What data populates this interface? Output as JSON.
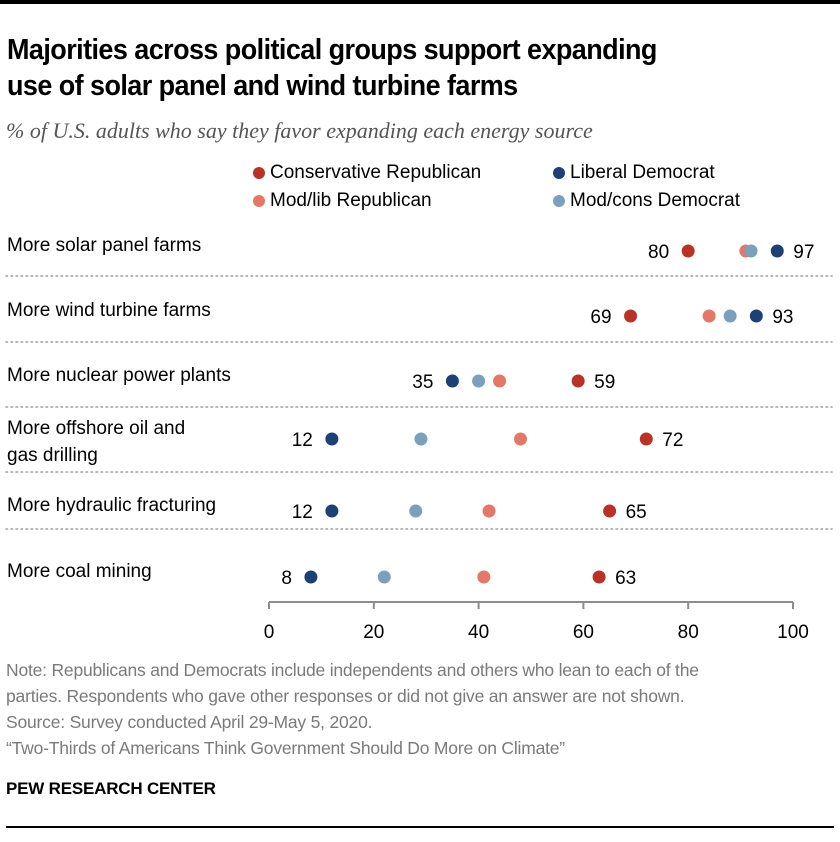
{
  "header": {
    "title_line1": "Majorities across political groups support expanding",
    "title_line2": "use of solar panel and wind turbine farms",
    "subtitle": "% of U.S. adults who say they favor expanding each energy source"
  },
  "colors": {
    "conservative_republican": "#b93226",
    "modlib_republican": "#e37768",
    "liberal_democrat": "#1d4075",
    "modcons_democrat": "#7aa0bd",
    "axis": "#8c8c8c",
    "divider": "#a0a0a0"
  },
  "chart_data": {
    "type": "scatter",
    "subtype": "dot-plot",
    "title": "Majorities across political groups support expanding use of solar panel and wind turbine farms",
    "subtitle": "% of U.S. adults who say they favor expanding each energy source",
    "xlabel": "",
    "ylabel": "",
    "xlim": [
      0,
      100
    ],
    "xticks": [
      0,
      20,
      40,
      60,
      80,
      100
    ],
    "grid": false,
    "legend_position": "top-right",
    "categories": [
      "More solar panel farms",
      "More wind turbine farms",
      "More nuclear power plants",
      "More offshore oil and gas drilling",
      "More hydraulic fracturing",
      "More coal mining"
    ],
    "series": [
      {
        "name": "Conservative Republican",
        "key": "conservative_republican",
        "values": [
          80,
          69,
          59,
          72,
          65,
          63
        ]
      },
      {
        "name": "Mod/lib Republican",
        "key": "modlib_republican",
        "values": [
          91,
          84,
          44,
          48,
          42,
          41
        ]
      },
      {
        "name": "Liberal Democrat",
        "key": "liberal_democrat",
        "values": [
          97,
          93,
          35,
          12,
          12,
          8
        ]
      },
      {
        "name": "Mod/cons Democrat",
        "key": "modcons_democrat",
        "values": [
          92,
          88,
          40,
          29,
          28,
          22
        ]
      }
    ],
    "data_labels": [
      {
        "low": "80",
        "high": "97"
      },
      {
        "low": "69",
        "high": "93"
      },
      {
        "low": "35",
        "high": "59"
      },
      {
        "low": "12",
        "high": "72"
      },
      {
        "low": "12",
        "high": "65"
      },
      {
        "low": "8",
        "high": "63"
      }
    ]
  },
  "row_labels": [
    [
      "More solar panel farms"
    ],
    [
      "More wind turbine farms"
    ],
    [
      "More nuclear power plants"
    ],
    [
      "More offshore oil and",
      "gas drilling"
    ],
    [
      "More hydraulic fracturing"
    ],
    [
      "More coal mining"
    ]
  ],
  "legend": {
    "items": [
      {
        "label": "Conservative Republican",
        "key": "conservative_republican"
      },
      {
        "label": "Liberal Democrat",
        "key": "liberal_democrat"
      },
      {
        "label": "Mod/lib Republican",
        "key": "modlib_republican"
      },
      {
        "label": "Mod/cons Democrat",
        "key": "modcons_democrat"
      }
    ]
  },
  "footer": {
    "note_line1": "Note: Republicans and Democrats include independents and others who lean to each of the",
    "note_line2": "parties. Respondents who gave other responses or did not give an answer are not shown.",
    "source": "Source: Survey conducted April 29-May 5, 2020.",
    "report": "“Two-Thirds of Americans Think Government Should Do More on Climate”",
    "brand": "PEW RESEARCH CENTER"
  }
}
